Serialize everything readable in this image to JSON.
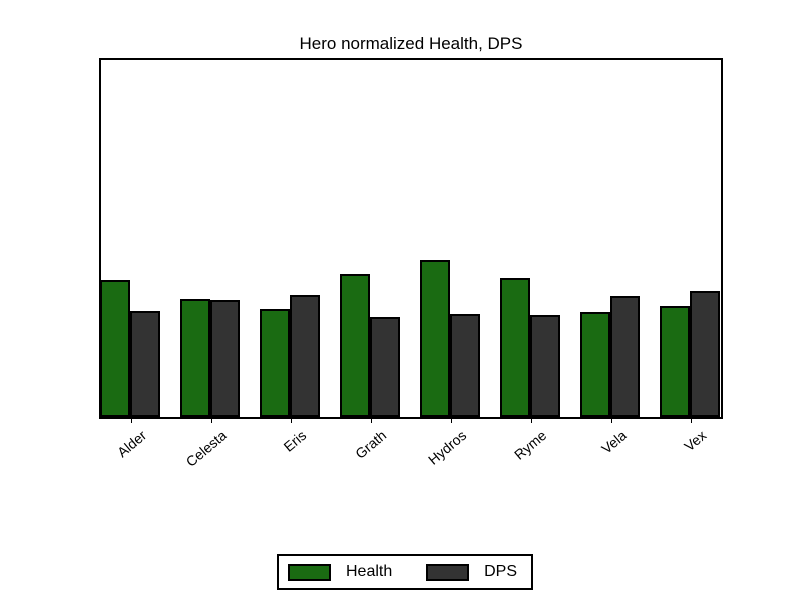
{
  "chart_data": {
    "type": "bar",
    "title": "Hero normalized Health, DPS",
    "categories": [
      "Alder",
      "Celesta",
      "Eris",
      "Grath",
      "Hydros",
      "Ryme",
      "Vela",
      "Vex"
    ],
    "series": [
      {
        "name": "Health",
        "color": "#1a6b12",
        "values": [
          0.38,
          0.327,
          0.299,
          0.396,
          0.435,
          0.385,
          0.291,
          0.307
        ]
      },
      {
        "name": "DPS",
        "color": "#333333",
        "values": [
          0.294,
          0.324,
          0.338,
          0.277,
          0.285,
          0.283,
          0.335,
          0.349
        ]
      }
    ],
    "xlabel": "",
    "ylabel": "",
    "ylim": [
      0,
      1
    ],
    "y_tick_labels": [],
    "grid": false,
    "legend_position": "bottom-center",
    "bar_edge_color": "#000000",
    "background_color": "#ffffff",
    "x_tick_label_rotation_deg": 40
  }
}
